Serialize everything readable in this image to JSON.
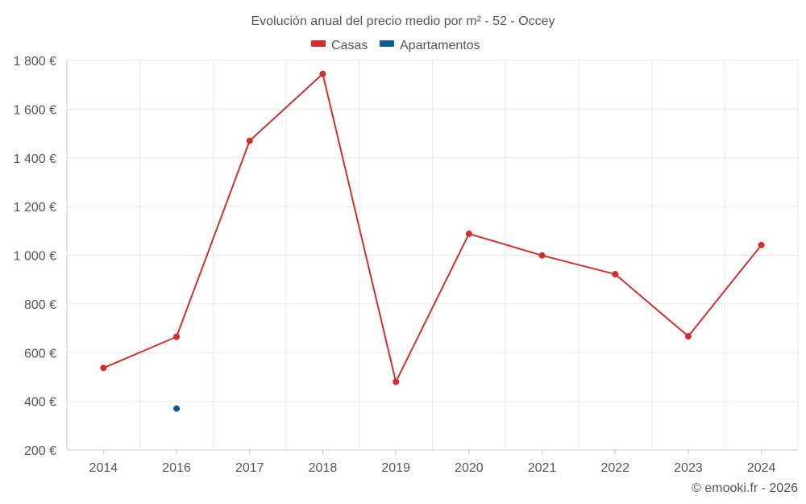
{
  "chart_data": {
    "type": "line",
    "title": "Evolución anual del precio medio por m² - 52 - Occey",
    "categories": [
      "2014",
      "2016",
      "2017",
      "2018",
      "2019",
      "2020",
      "2021",
      "2022",
      "2023",
      "2024"
    ],
    "series": [
      {
        "name": "Casas",
        "color": "#d32f2f",
        "values": [
          537,
          665,
          1470,
          1745,
          480,
          1088,
          999,
          922,
          667,
          1042
        ]
      },
      {
        "name": "Apartamentos",
        "color": "#0d5c91",
        "values": [
          null,
          370,
          null,
          null,
          null,
          null,
          null,
          null,
          null,
          null
        ]
      }
    ],
    "y_ticks": [
      200,
      400,
      600,
      800,
      1000,
      1200,
      1400,
      1600,
      1800
    ],
    "y_tick_labels": [
      "200 €",
      "400 €",
      "600 €",
      "800 €",
      "1 000 €",
      "1 200 €",
      "1 400 €",
      "1 600 €",
      "1 800 €"
    ],
    "ylim": [
      200,
      1800
    ],
    "xlabel": "",
    "ylabel": "",
    "grid": true,
    "legend_position": "top-center"
  },
  "credit": "© emooki.fr - 2026"
}
